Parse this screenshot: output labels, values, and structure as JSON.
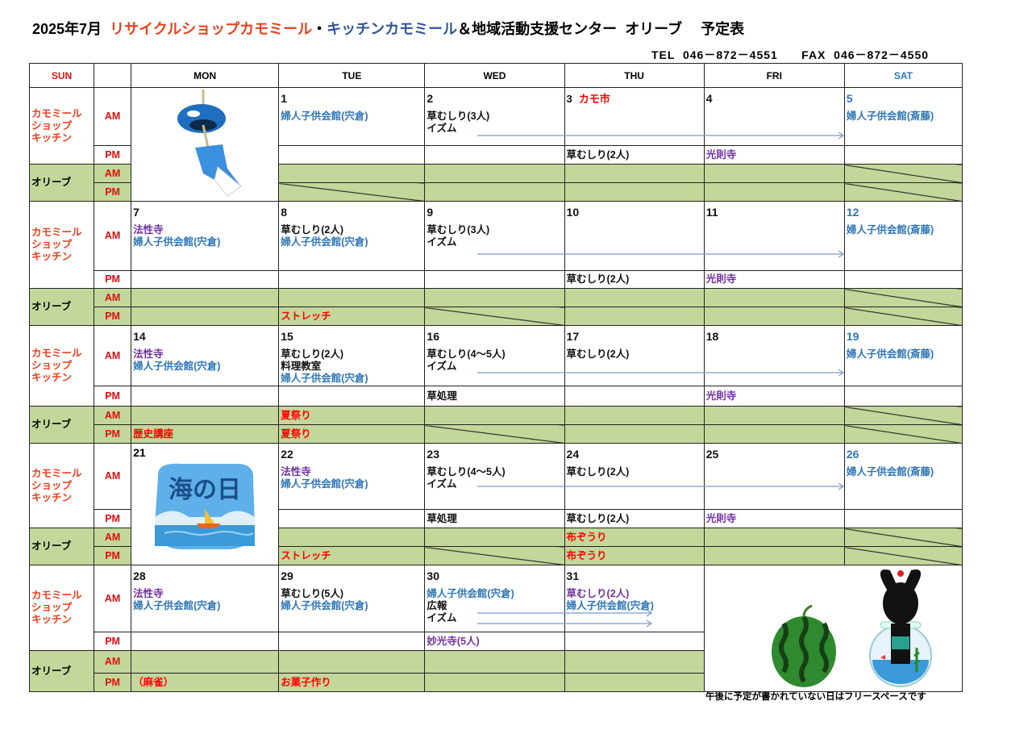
{
  "header": {
    "title_parts": [
      {
        "text": "2025年7月  ",
        "color": "#000000"
      },
      {
        "text": "リサイクルショップカモミール",
        "color": "#e8401c"
      },
      {
        "text": "・",
        "color": "#000000"
      },
      {
        "text": "キッチンカモミール",
        "color": "#2f5597"
      },
      {
        "text": "＆地域活動支援センター  オリーブ　 予定表",
        "color": "#000000"
      }
    ],
    "contact": "TEL  046－872－4551      FAX  046－872－4550"
  },
  "colors": {
    "blue": "#2e75b6",
    "purple": "#7030a0",
    "red": "#ff0000",
    "black": "#111111",
    "orange": "#e8401c",
    "green_fill": "#c4d79b",
    "arrow": "#7d9bc7"
  },
  "columns": [
    {
      "label": "SUN",
      "color": "#e01010"
    },
    {
      "label": "",
      "color": "#000"
    },
    {
      "label": "MON",
      "color": "#000"
    },
    {
      "label": "TUE",
      "color": "#000"
    },
    {
      "label": "WED",
      "color": "#000"
    },
    {
      "label": "THU",
      "color": "#000"
    },
    {
      "label": "FRI",
      "color": "#000"
    },
    {
      "label": "SAT",
      "color": "#2e75b6"
    }
  ],
  "row_labels": {
    "chamomile": [
      "カモミール",
      "ショップ",
      "キッチン"
    ],
    "olive": "オリーブ",
    "am": "AM",
    "pm": "PM"
  },
  "weeks": [
    {
      "days": [
        {
          "image": "wind-chime"
        },
        {
          "date": "1",
          "am": [
            {
              "t": "婦人子供会館(宍倉)",
              "c": "blue"
            }
          ],
          "opm_diag": true
        },
        {
          "date": "2",
          "am": [
            {
              "t": "草むしり(3人)",
              "c": "black"
            },
            {
              "t": "イズム",
              "c": "black"
            }
          ]
        },
        {
          "date": "3",
          "date_note": "カモ市",
          "pm": [
            {
              "t": "草むしり(2人)",
              "c": "black"
            }
          ]
        },
        {
          "date": "4",
          "pm": [
            {
              "t": "光則寺",
              "c": "purple"
            }
          ]
        },
        {
          "date": "5",
          "date_color": "blue",
          "am": [
            {
              "t": "婦人子供会館(斎藤)",
              "c": "blue"
            }
          ],
          "oam_diag": true,
          "opm_diag": true
        }
      ],
      "arrows": [
        {
          "from": "WED",
          "to": "SAT"
        }
      ]
    },
    {
      "days": [
        {
          "date": "7",
          "am": [
            {
              "t": "法性寺",
              "c": "purple"
            },
            {
              "t": "婦人子供会館(宍倉)",
              "c": "blue"
            }
          ]
        },
        {
          "date": "8",
          "am": [
            {
              "t": "草むしり(2人)",
              "c": "black"
            },
            {
              "t": "婦人子供会館(宍倉)",
              "c": "blue"
            }
          ],
          "opm": [
            {
              "t": "ストレッチ",
              "c": "red"
            }
          ]
        },
        {
          "date": "9",
          "am": [
            {
              "t": "草むしり(3人)",
              "c": "black"
            },
            {
              "t": "イズム",
              "c": "black"
            }
          ],
          "opm_diag": true
        },
        {
          "date": "10",
          "pm": [
            {
              "t": "草むしり(2人)",
              "c": "black"
            }
          ]
        },
        {
          "date": "11",
          "pm": [
            {
              "t": "光則寺",
              "c": "purple"
            }
          ]
        },
        {
          "date": "12",
          "date_color": "blue",
          "am": [
            {
              "t": "婦人子供会館(斎藤)",
              "c": "blue"
            }
          ],
          "oam_diag": true,
          "opm_diag": true
        }
      ],
      "arrows": [
        {
          "from": "WED",
          "to": "SAT"
        }
      ]
    },
    {
      "days": [
        {
          "date": "14",
          "am": [
            {
              "t": "法性寺",
              "c": "purple"
            },
            {
              "t": "婦人子供会館(宍倉)",
              "c": "blue"
            }
          ],
          "opm": [
            {
              "t": "歴史講座",
              "c": "red"
            }
          ]
        },
        {
          "date": "15",
          "am": [
            {
              "t": "草むしり(2人)",
              "c": "black"
            },
            {
              "t": "料理教室",
              "c": "black"
            },
            {
              "t": "婦人子供会館(宍倉)",
              "c": "blue"
            }
          ],
          "oam": [
            {
              "t": "夏祭り",
              "c": "red"
            }
          ],
          "opm": [
            {
              "t": "夏祭り",
              "c": "red"
            }
          ]
        },
        {
          "date": "16",
          "am": [
            {
              "t": "草むしり(4～5人)",
              "c": "black"
            },
            {
              "t": "イズム",
              "c": "black"
            }
          ],
          "pm": [
            {
              "t": "草処理",
              "c": "black"
            }
          ],
          "opm_diag": true
        },
        {
          "date": "17",
          "am": [
            {
              "t": "草むしり(2人)",
              "c": "black"
            }
          ]
        },
        {
          "date": "18",
          "pm": [
            {
              "t": "光則寺",
              "c": "purple"
            }
          ]
        },
        {
          "date": "19",
          "date_color": "blue",
          "am": [
            {
              "t": "婦人子供会館(斎藤)",
              "c": "blue"
            }
          ],
          "oam_diag": true,
          "opm_diag": true
        }
      ],
      "arrows": [
        {
          "from": "WED",
          "to": "SAT"
        }
      ]
    },
    {
      "days": [
        {
          "date": "21",
          "image": "umi-no-hi",
          "image_text": "海の日"
        },
        {
          "date": "22",
          "am": [
            {
              "t": "法性寺",
              "c": "purple"
            },
            {
              "t": "婦人子供会館(宍倉)",
              "c": "blue"
            }
          ],
          "opm": [
            {
              "t": "ストレッチ",
              "c": "red"
            }
          ]
        },
        {
          "date": "23",
          "am": [
            {
              "t": "草むしり(4～5人)",
              "c": "black"
            },
            {
              "t": "イズム",
              "c": "black"
            }
          ],
          "pm": [
            {
              "t": "草処理",
              "c": "black"
            }
          ],
          "opm_diag": true
        },
        {
          "date": "24",
          "am": [
            {
              "t": "草むしり(2人)",
              "c": "black"
            }
          ],
          "pm": [
            {
              "t": "草むしり(2人)",
              "c": "black"
            }
          ],
          "oam": [
            {
              "t": "布ぞうり",
              "c": "red"
            }
          ],
          "opm": [
            {
              "t": "布ぞうり",
              "c": "red"
            }
          ]
        },
        {
          "date": "25",
          "pm": [
            {
              "t": "光則寺",
              "c": "purple"
            }
          ]
        },
        {
          "date": "26",
          "date_color": "blue",
          "am": [
            {
              "t": "婦人子供会館(斎藤)",
              "c": "blue"
            }
          ],
          "oam_diag": true,
          "opm_diag": true
        }
      ],
      "arrows": [
        {
          "from": "WED",
          "to": "SAT"
        }
      ]
    },
    {
      "days": [
        {
          "date": "28",
          "am": [
            {
              "t": "法性寺",
              "c": "purple"
            },
            {
              "t": "婦人子供会館(宍倉)",
              "c": "blue"
            }
          ],
          "opm": [
            {
              "t": "（麻雀）",
              "c": "red"
            }
          ]
        },
        {
          "date": "29",
          "am": [
            {
              "t": "草むしり(5人)",
              "c": "black"
            },
            {
              "t": "婦人子供会館(宍倉)",
              "c": "blue"
            }
          ],
          "opm": [
            {
              "t": "お菓子作り",
              "c": "red"
            }
          ]
        },
        {
          "date": "30",
          "am": [
            {
              "t": "婦人子供会館(宍倉)",
              "c": "blue"
            },
            {
              "t": "広報",
              "c": "black"
            },
            {
              "t": "イズム",
              "c": "black"
            }
          ],
          "pm": [
            {
              "t": "妙光寺(5人)",
              "c": "purple"
            }
          ]
        },
        {
          "date": "31",
          "am": [
            {
              "t": "草むしり(2人)",
              "c": "purple"
            },
            {
              "t": "婦人子供会館(宍倉)",
              "c": "blue"
            }
          ]
        },
        {
          "image": "watermelon-rabbit-fishbowl",
          "span": 2
        }
      ],
      "arrows": [
        {
          "from": "WED",
          "to": "THU"
        },
        {
          "from": "WED",
          "to": "THU"
        }
      ]
    }
  ],
  "footnote": "午後に予定が書かれていない日はフリースペースです"
}
